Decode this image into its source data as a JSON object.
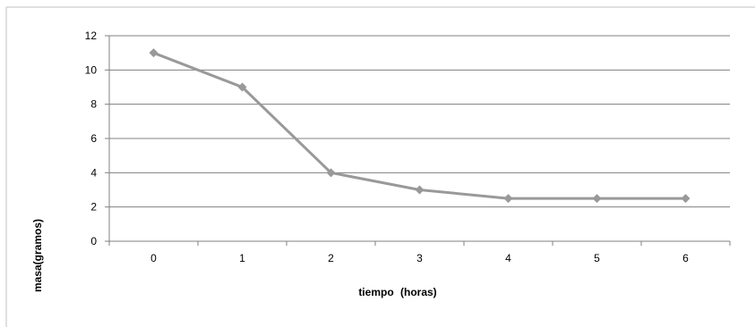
{
  "chart_data": {
    "type": "line",
    "title": "",
    "xlabel": "tiempo (horas)",
    "xlabel_parts": [
      "tiempo",
      "(horas)"
    ],
    "ylabel": "masa(gramos)",
    "categories": [
      "0",
      "1",
      "2",
      "3",
      "4",
      "5",
      "6"
    ],
    "x": [
      0,
      1,
      2,
      3,
      4,
      5,
      6
    ],
    "series": [
      {
        "values": [
          11,
          9,
          4,
          3,
          2.5,
          2.5,
          2.5
        ]
      }
    ],
    "ylim": [
      0,
      12
    ],
    "yticks": [
      "0",
      "2",
      "4",
      "6",
      "8",
      "10",
      "12"
    ],
    "grid": true,
    "legend": "none",
    "colors": {
      "series": "#999999",
      "grid": "#808080",
      "axis": "#808080",
      "frame": "#c0c0c0"
    }
  }
}
